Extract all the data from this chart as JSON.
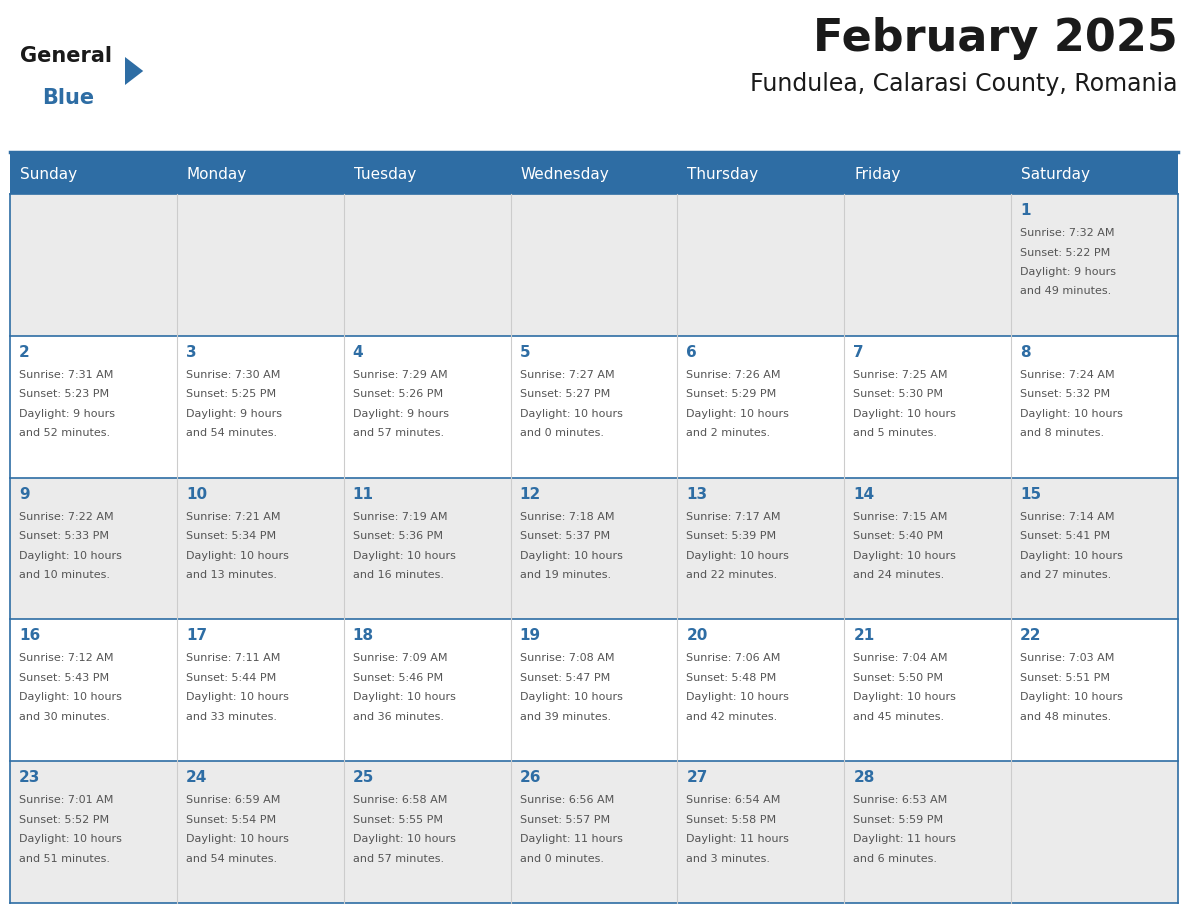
{
  "title": "February 2025",
  "subtitle": "Fundulea, Calarasi County, Romania",
  "header_bg": "#2e6da4",
  "header_text": "#ffffff",
  "header_days": [
    "Sunday",
    "Monday",
    "Tuesday",
    "Wednesday",
    "Thursday",
    "Friday",
    "Saturday"
  ],
  "row_bg_odd": "#ebebeb",
  "row_bg_even": "#ffffff",
  "border_color": "#2e6da4",
  "day_number_color": "#2e6da4",
  "cell_text_color": "#555555",
  "logo_general_color": "#1a1a1a",
  "logo_blue_color": "#2e6da4",
  "title_color": "#1a1a1a",
  "subtitle_color": "#1a1a1a",
  "calendar_data": [
    [
      null,
      null,
      null,
      null,
      null,
      null,
      {
        "day": 1,
        "lines": [
          "Sunrise: 7:32 AM",
          "Sunset: 5:22 PM",
          "Daylight: 9 hours",
          "and 49 minutes."
        ]
      }
    ],
    [
      {
        "day": 2,
        "lines": [
          "Sunrise: 7:31 AM",
          "Sunset: 5:23 PM",
          "Daylight: 9 hours",
          "and 52 minutes."
        ]
      },
      {
        "day": 3,
        "lines": [
          "Sunrise: 7:30 AM",
          "Sunset: 5:25 PM",
          "Daylight: 9 hours",
          "and 54 minutes."
        ]
      },
      {
        "day": 4,
        "lines": [
          "Sunrise: 7:29 AM",
          "Sunset: 5:26 PM",
          "Daylight: 9 hours",
          "and 57 minutes."
        ]
      },
      {
        "day": 5,
        "lines": [
          "Sunrise: 7:27 AM",
          "Sunset: 5:27 PM",
          "Daylight: 10 hours",
          "and 0 minutes."
        ]
      },
      {
        "day": 6,
        "lines": [
          "Sunrise: 7:26 AM",
          "Sunset: 5:29 PM",
          "Daylight: 10 hours",
          "and 2 minutes."
        ]
      },
      {
        "day": 7,
        "lines": [
          "Sunrise: 7:25 AM",
          "Sunset: 5:30 PM",
          "Daylight: 10 hours",
          "and 5 minutes."
        ]
      },
      {
        "day": 8,
        "lines": [
          "Sunrise: 7:24 AM",
          "Sunset: 5:32 PM",
          "Daylight: 10 hours",
          "and 8 minutes."
        ]
      }
    ],
    [
      {
        "day": 9,
        "lines": [
          "Sunrise: 7:22 AM",
          "Sunset: 5:33 PM",
          "Daylight: 10 hours",
          "and 10 minutes."
        ]
      },
      {
        "day": 10,
        "lines": [
          "Sunrise: 7:21 AM",
          "Sunset: 5:34 PM",
          "Daylight: 10 hours",
          "and 13 minutes."
        ]
      },
      {
        "day": 11,
        "lines": [
          "Sunrise: 7:19 AM",
          "Sunset: 5:36 PM",
          "Daylight: 10 hours",
          "and 16 minutes."
        ]
      },
      {
        "day": 12,
        "lines": [
          "Sunrise: 7:18 AM",
          "Sunset: 5:37 PM",
          "Daylight: 10 hours",
          "and 19 minutes."
        ]
      },
      {
        "day": 13,
        "lines": [
          "Sunrise: 7:17 AM",
          "Sunset: 5:39 PM",
          "Daylight: 10 hours",
          "and 22 minutes."
        ]
      },
      {
        "day": 14,
        "lines": [
          "Sunrise: 7:15 AM",
          "Sunset: 5:40 PM",
          "Daylight: 10 hours",
          "and 24 minutes."
        ]
      },
      {
        "day": 15,
        "lines": [
          "Sunrise: 7:14 AM",
          "Sunset: 5:41 PM",
          "Daylight: 10 hours",
          "and 27 minutes."
        ]
      }
    ],
    [
      {
        "day": 16,
        "lines": [
          "Sunrise: 7:12 AM",
          "Sunset: 5:43 PM",
          "Daylight: 10 hours",
          "and 30 minutes."
        ]
      },
      {
        "day": 17,
        "lines": [
          "Sunrise: 7:11 AM",
          "Sunset: 5:44 PM",
          "Daylight: 10 hours",
          "and 33 minutes."
        ]
      },
      {
        "day": 18,
        "lines": [
          "Sunrise: 7:09 AM",
          "Sunset: 5:46 PM",
          "Daylight: 10 hours",
          "and 36 minutes."
        ]
      },
      {
        "day": 19,
        "lines": [
          "Sunrise: 7:08 AM",
          "Sunset: 5:47 PM",
          "Daylight: 10 hours",
          "and 39 minutes."
        ]
      },
      {
        "day": 20,
        "lines": [
          "Sunrise: 7:06 AM",
          "Sunset: 5:48 PM",
          "Daylight: 10 hours",
          "and 42 minutes."
        ]
      },
      {
        "day": 21,
        "lines": [
          "Sunrise: 7:04 AM",
          "Sunset: 5:50 PM",
          "Daylight: 10 hours",
          "and 45 minutes."
        ]
      },
      {
        "day": 22,
        "lines": [
          "Sunrise: 7:03 AM",
          "Sunset: 5:51 PM",
          "Daylight: 10 hours",
          "and 48 minutes."
        ]
      }
    ],
    [
      {
        "day": 23,
        "lines": [
          "Sunrise: 7:01 AM",
          "Sunset: 5:52 PM",
          "Daylight: 10 hours",
          "and 51 minutes."
        ]
      },
      {
        "day": 24,
        "lines": [
          "Sunrise: 6:59 AM",
          "Sunset: 5:54 PM",
          "Daylight: 10 hours",
          "and 54 minutes."
        ]
      },
      {
        "day": 25,
        "lines": [
          "Sunrise: 6:58 AM",
          "Sunset: 5:55 PM",
          "Daylight: 10 hours",
          "and 57 minutes."
        ]
      },
      {
        "day": 26,
        "lines": [
          "Sunrise: 6:56 AM",
          "Sunset: 5:57 PM",
          "Daylight: 11 hours",
          "and 0 minutes."
        ]
      },
      {
        "day": 27,
        "lines": [
          "Sunrise: 6:54 AM",
          "Sunset: 5:58 PM",
          "Daylight: 11 hours",
          "and 3 minutes."
        ]
      },
      {
        "day": 28,
        "lines": [
          "Sunrise: 6:53 AM",
          "Sunset: 5:59 PM",
          "Daylight: 11 hours",
          "and 6 minutes."
        ]
      },
      null
    ]
  ]
}
